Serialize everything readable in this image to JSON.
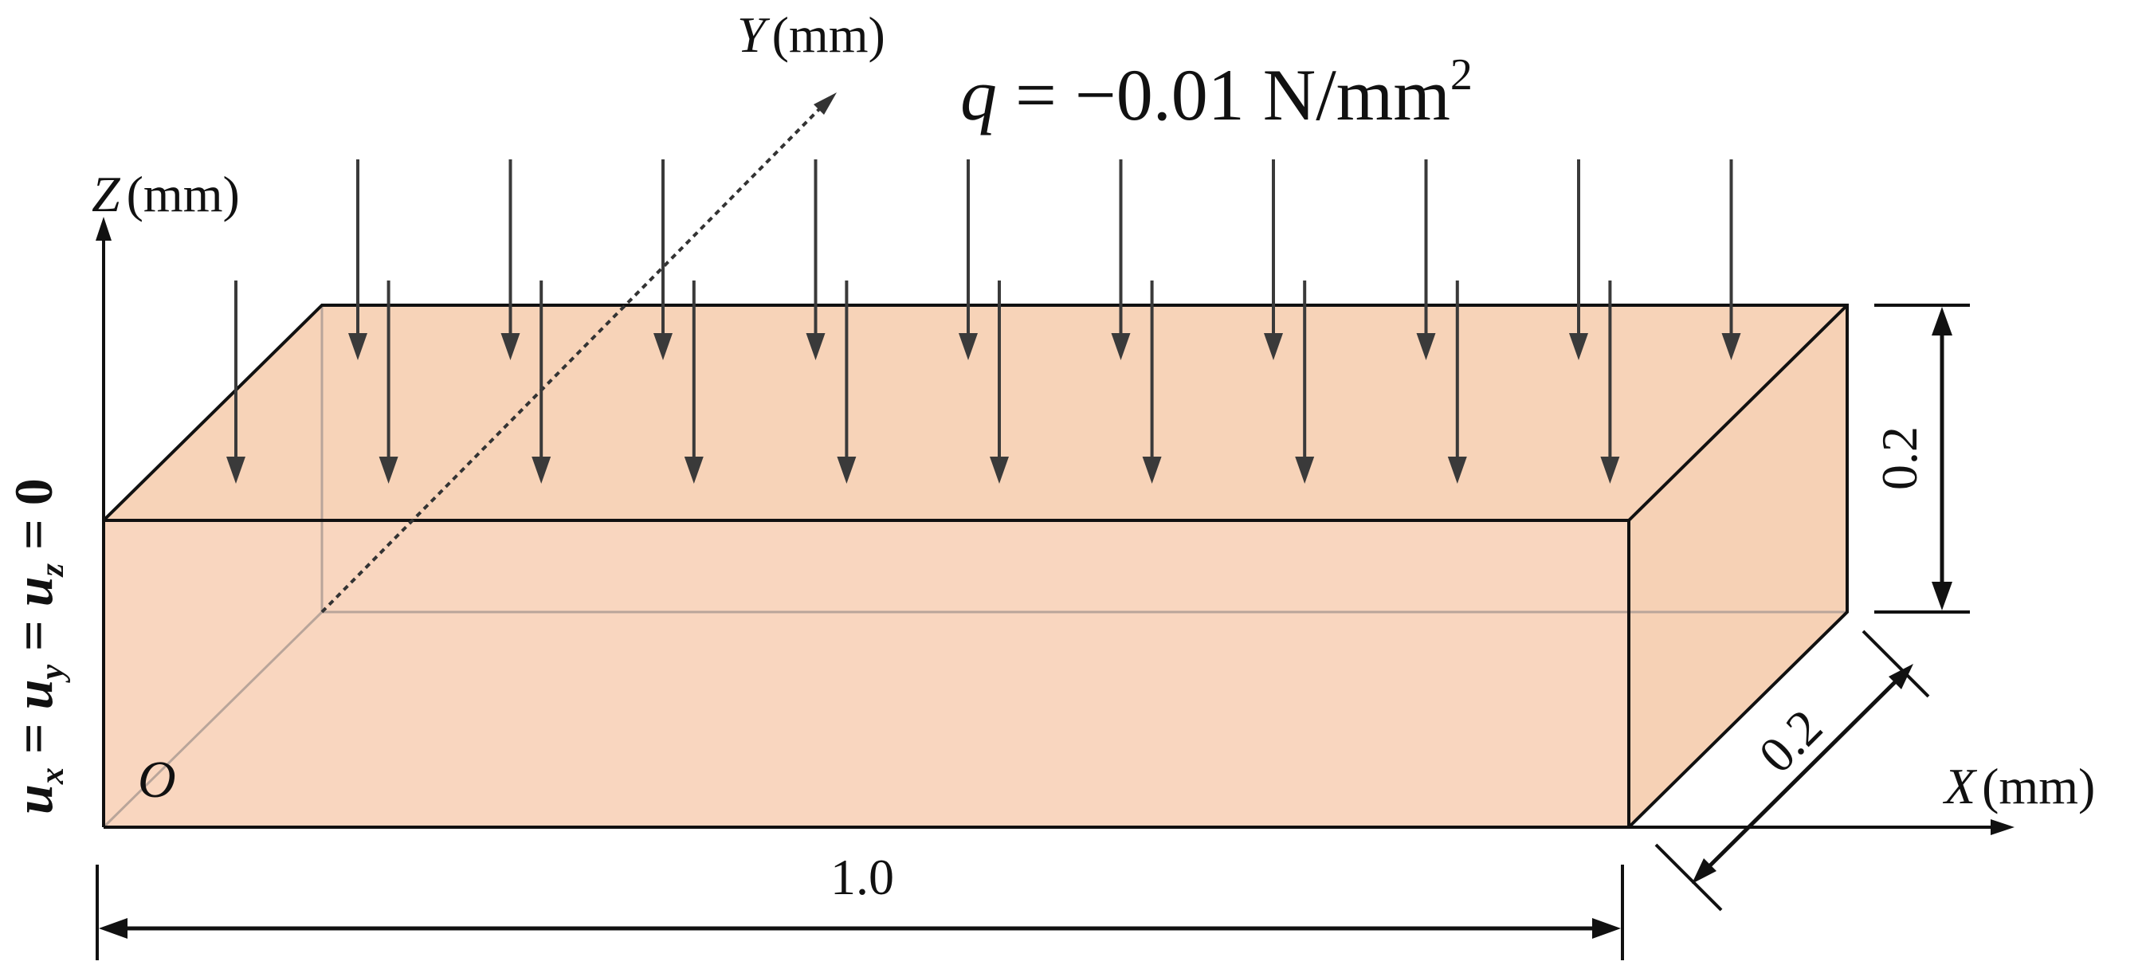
{
  "colors": {
    "box_top": "#f7d3b8",
    "box_front": "#f9d6bf",
    "box_side": "#f6d1b5",
    "edge": "#111111",
    "hidden_edge": "#b9a59a",
    "arrow": "#3a3a3a",
    "dotted_axis": "#333333"
  },
  "axes": {
    "z": {
      "symbol": "Z",
      "unit": "(mm)"
    },
    "y": {
      "symbol": "Y",
      "unit": "(mm)"
    },
    "x": {
      "symbol": "X",
      "unit": "(mm)"
    },
    "origin": "O"
  },
  "load": {
    "symbol": "q",
    "equals": " = ",
    "value": "−0.01 N/mm",
    "exponent": "2",
    "rear_row_count": 10,
    "front_row_count": 10
  },
  "boundary_condition": {
    "u": "u",
    "x": "x",
    "y": "y",
    "z": "z",
    "eq": " = ",
    "zero": "0"
  },
  "dimensions": {
    "length": "1.0",
    "height": "0.2",
    "depth": "0.2"
  }
}
